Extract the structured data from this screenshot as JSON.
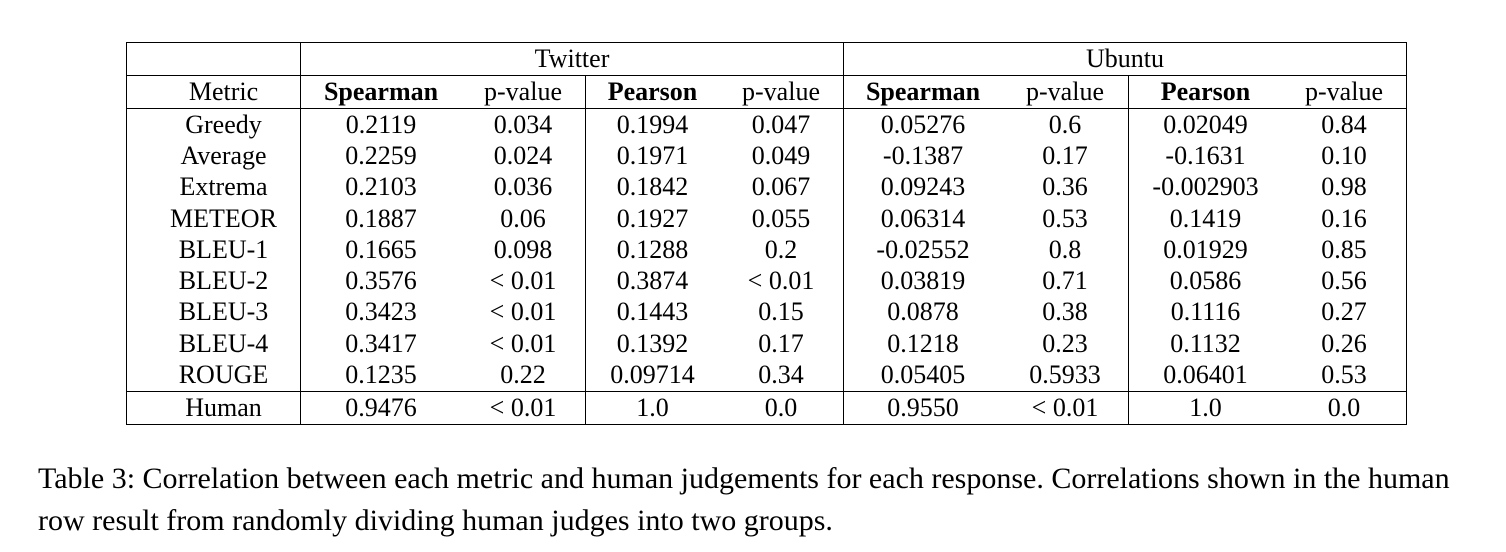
{
  "table": {
    "groups": [
      "Twitter",
      "Ubuntu"
    ],
    "columns": [
      "Metric",
      "Spearman",
      "p-value",
      "Pearson",
      "p-value",
      "Spearman",
      "p-value",
      "Pearson",
      "p-value"
    ],
    "rows": [
      [
        "Greedy",
        "0.2119",
        "0.034",
        "0.1994",
        "0.047",
        "0.05276",
        "0.6",
        "0.02049",
        "0.84"
      ],
      [
        "Average",
        "0.2259",
        "0.024",
        "0.1971",
        "0.049",
        "-0.1387",
        "0.17",
        "-0.1631",
        "0.10"
      ],
      [
        "Extrema",
        "0.2103",
        "0.036",
        "0.1842",
        "0.067",
        "0.09243",
        "0.36",
        "-0.002903",
        "0.98"
      ],
      [
        "METEOR",
        "0.1887",
        "0.06",
        "0.1927",
        "0.055",
        "0.06314",
        "0.53",
        "0.1419",
        "0.16"
      ],
      [
        "BLEU-1",
        "0.1665",
        "0.098",
        "0.1288",
        "0.2",
        "-0.02552",
        "0.8",
        "0.01929",
        "0.85"
      ],
      [
        "BLEU-2",
        "0.3576",
        "< 0.01",
        "0.3874",
        "< 0.01",
        "0.03819",
        "0.71",
        "0.0586",
        "0.56"
      ],
      [
        "BLEU-3",
        "0.3423",
        "< 0.01",
        "0.1443",
        "0.15",
        "0.0878",
        "0.38",
        "0.1116",
        "0.27"
      ],
      [
        "BLEU-4",
        "0.3417",
        "< 0.01",
        "0.1392",
        "0.17",
        "0.1218",
        "0.23",
        "0.1132",
        "0.26"
      ],
      [
        "ROUGE",
        "0.1235",
        "0.22",
        "0.09714",
        "0.34",
        "0.05405",
        "0.5933",
        "0.06401",
        "0.53"
      ]
    ],
    "human_row": [
      "Human",
      "0.9476",
      "< 0.01",
      "1.0",
      "0.0",
      "0.9550",
      "< 0.01",
      "1.0",
      "0.0"
    ]
  },
  "caption": "Table 3:  Correlation between each metric and human judgements for each response. Correlations shown in the human row result from randomly dividing human judges into two groups."
}
